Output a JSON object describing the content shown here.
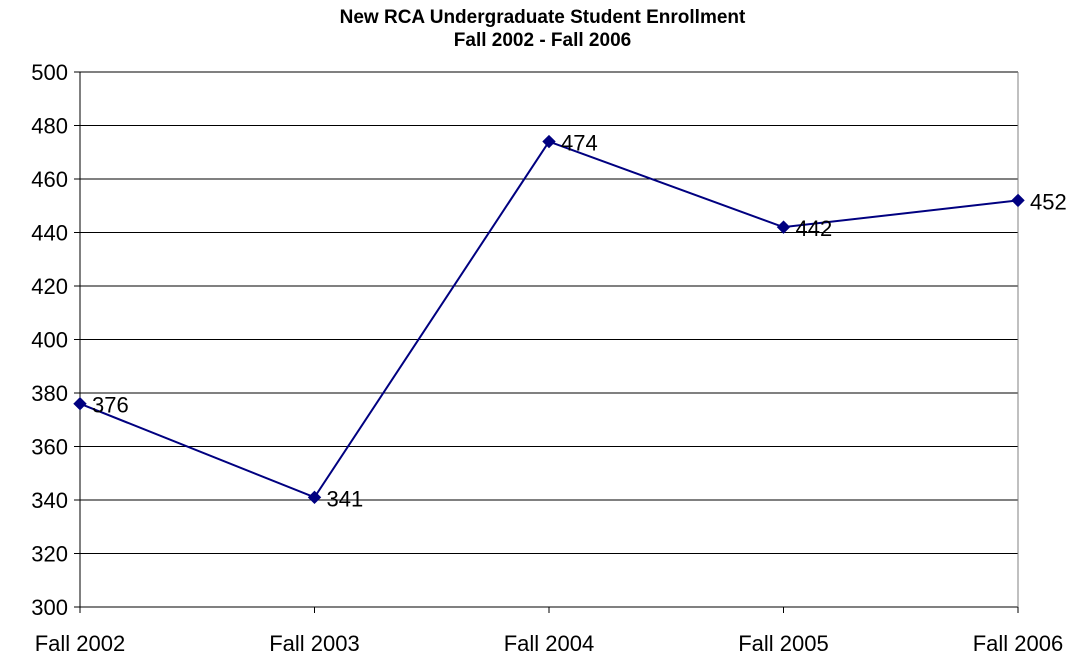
{
  "chart_data": {
    "type": "line",
    "title": "New RCA Undergraduate Student Enrollment",
    "subtitle": "Fall 2002 - Fall 2006",
    "xlabel": "",
    "ylabel": "",
    "categories": [
      "Fall 2002",
      "Fall 2003",
      "Fall 2004",
      "Fall 2005",
      "Fall 2006"
    ],
    "series": [
      {
        "values": [
          376,
          341,
          474,
          442,
          452
        ],
        "color": "#000080",
        "marker": "diamond"
      }
    ],
    "data_labels": [
      "376",
      "341",
      "474",
      "442",
      "452"
    ],
    "ylim": [
      300,
      500
    ],
    "yticks": [
      300,
      320,
      340,
      360,
      380,
      400,
      420,
      440,
      460,
      480,
      500
    ],
    "grid": true,
    "legend": "none"
  }
}
